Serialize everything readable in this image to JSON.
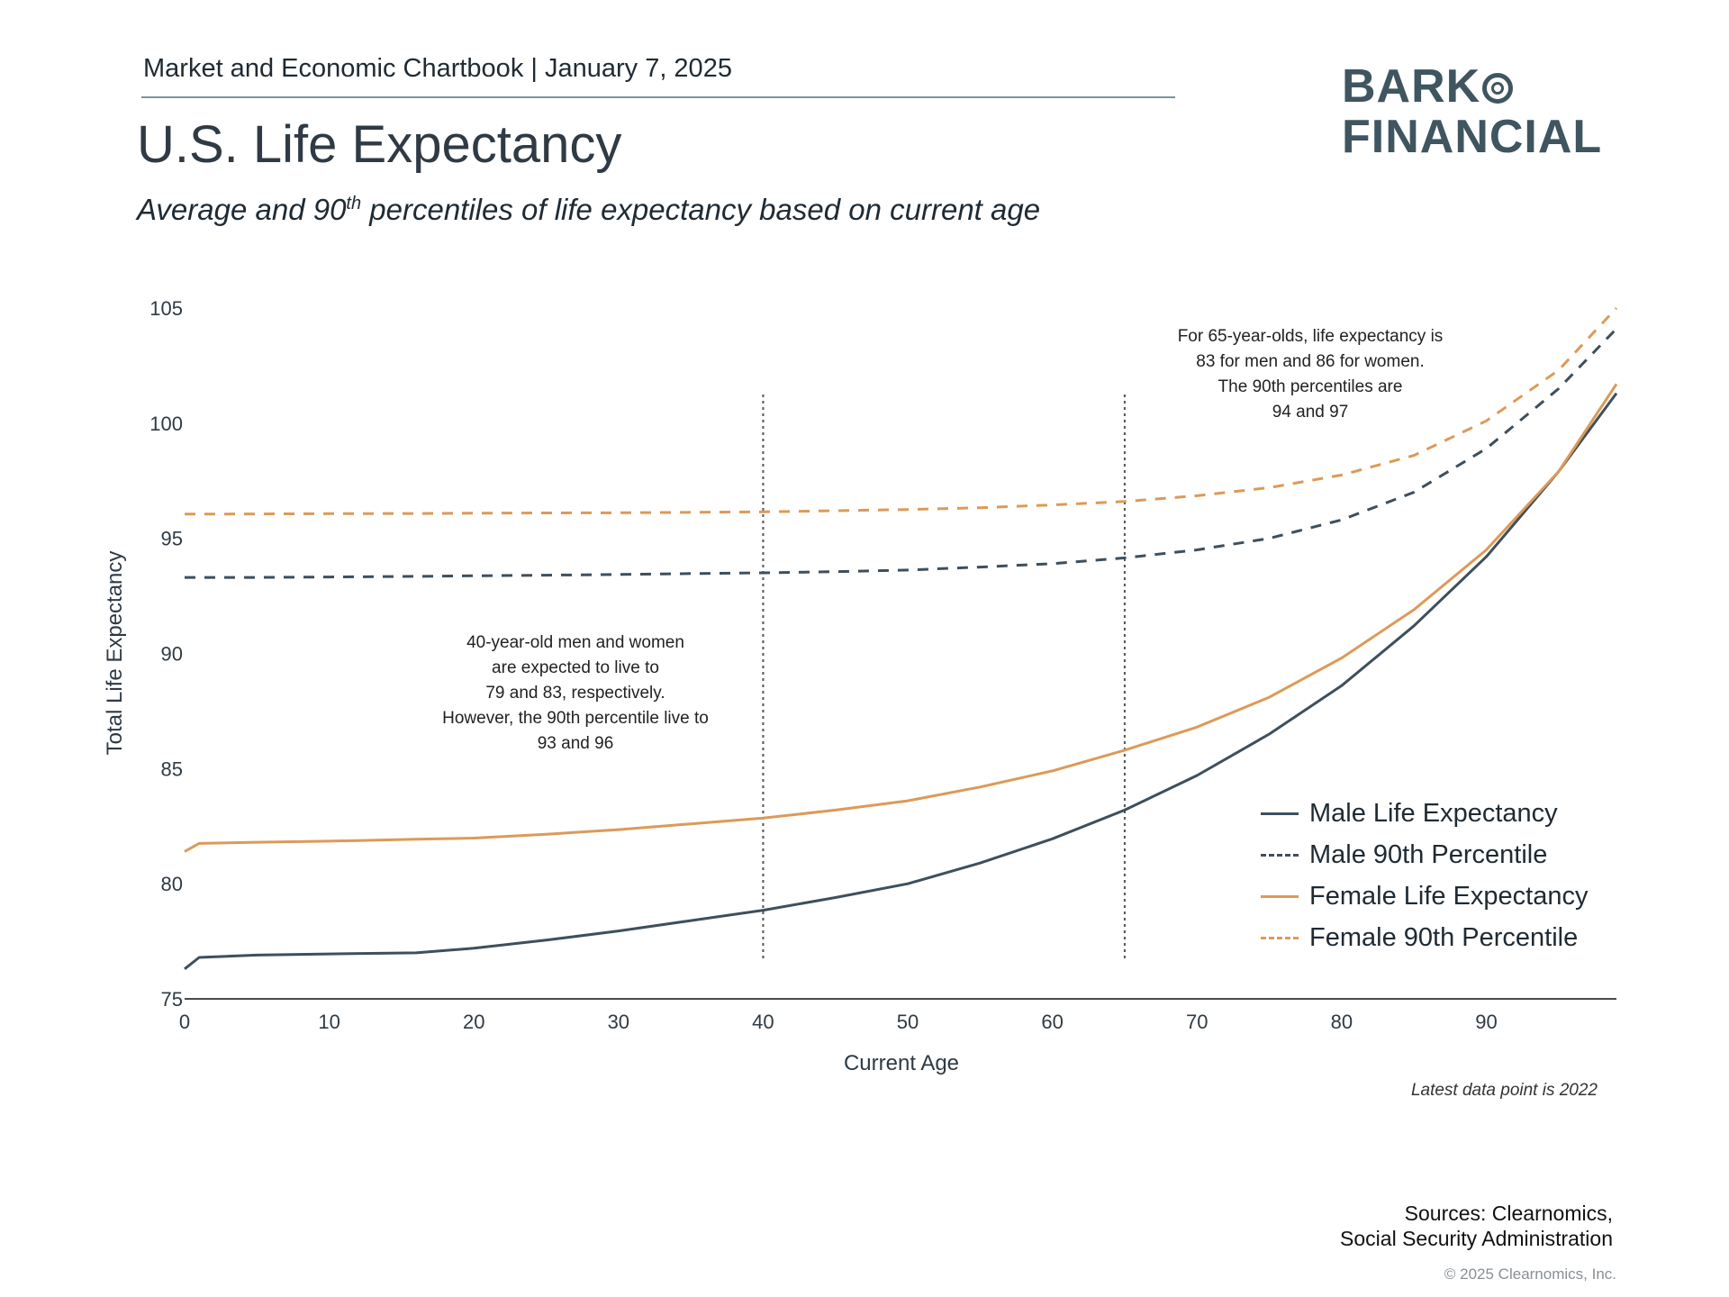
{
  "header": {
    "chartbook": "Market and Economic Chartbook | January 7, 2025"
  },
  "logo": {
    "line1": "BARK",
    "line2": "FINANCIAL"
  },
  "chart_data": {
    "type": "line",
    "title": "U.S. Life Expectancy",
    "subtitle_prefix": "Average and 90",
    "subtitle_sup": "th",
    "subtitle_suffix": " percentiles of life expectancy based on current age",
    "xlabel": "Current Age",
    "ylabel": "Total Life Expectancy",
    "xlim": [
      0,
      99
    ],
    "ylim": [
      75,
      105
    ],
    "xticks": [
      0,
      10,
      20,
      30,
      40,
      50,
      60,
      70,
      80,
      90
    ],
    "yticks": [
      75,
      80,
      85,
      90,
      95,
      100,
      105
    ],
    "reference_lines_x": [
      40,
      65
    ],
    "x": [
      0,
      1,
      5,
      10,
      16,
      20,
      25,
      30,
      35,
      40,
      45,
      50,
      55,
      60,
      65,
      70,
      75,
      80,
      85,
      90,
      95,
      99
    ],
    "series": [
      {
        "name": "Male Life Expectancy",
        "style": "solid",
        "color": "#3e4f5c",
        "values": [
          76.3,
          76.8,
          76.9,
          76.95,
          77.0,
          77.2,
          77.55,
          77.95,
          78.4,
          78.85,
          79.4,
          80.0,
          80.9,
          81.95,
          83.2,
          84.7,
          86.5,
          88.6,
          91.2,
          94.2,
          97.9,
          101.3
        ]
      },
      {
        "name": "Male 90th Percentile",
        "style": "dashed",
        "color": "#3e4f5c",
        "values": [
          93.3,
          93.3,
          93.3,
          93.32,
          93.35,
          93.37,
          93.4,
          93.43,
          93.47,
          93.5,
          93.55,
          93.62,
          93.75,
          93.9,
          94.15,
          94.5,
          95.0,
          95.8,
          97.0,
          98.9,
          101.5,
          104.1
        ]
      },
      {
        "name": "Female Life Expectancy",
        "style": "solid",
        "color": "#dc9a58",
        "values": [
          81.4,
          81.75,
          81.8,
          81.85,
          81.93,
          81.98,
          82.15,
          82.35,
          82.6,
          82.85,
          83.2,
          83.6,
          84.2,
          84.9,
          85.8,
          86.8,
          88.1,
          89.8,
          91.9,
          94.5,
          97.9,
          101.7
        ]
      },
      {
        "name": "Female 90th Percentile",
        "style": "dashed",
        "color": "#dc9a58",
        "values": [
          96.05,
          96.05,
          96.06,
          96.07,
          96.08,
          96.09,
          96.1,
          96.11,
          96.13,
          96.15,
          96.2,
          96.25,
          96.33,
          96.45,
          96.6,
          96.85,
          97.2,
          97.75,
          98.6,
          100.1,
          102.3,
          105.0
        ]
      }
    ],
    "annotations": {
      "age65": [
        "For 65-year-olds, life expectancy is",
        "83 for men and 86 for women.",
        "The 90th percentiles are",
        "94 and 97"
      ],
      "age40": [
        "40-year-old men and women",
        "are expected to live to",
        "79 and 83, respectively.",
        "However, the 90th percentile live to",
        "93 and 96"
      ]
    },
    "latest_note": "Latest data point is 2022"
  },
  "footer": {
    "sources_line1": "Sources: Clearnomics,",
    "sources_line2": "Social Security Administration",
    "copyright": "© 2025 Clearnomics, Inc."
  }
}
